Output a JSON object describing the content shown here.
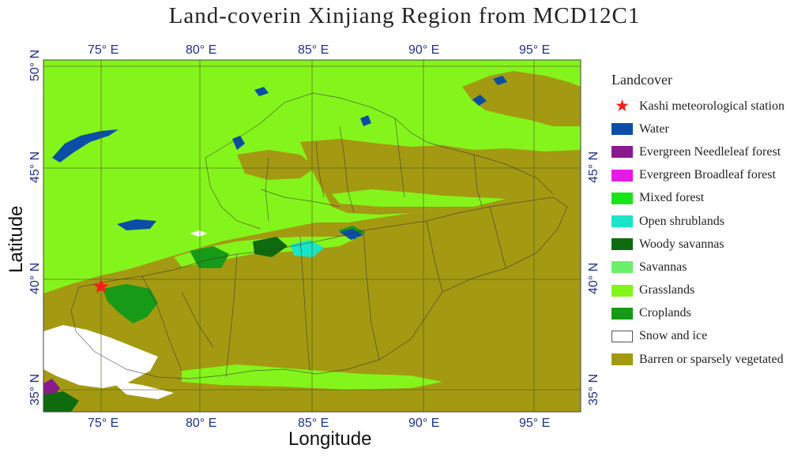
{
  "title": "Land-coverin Xinjiang Region from MCD12C1",
  "axes": {
    "x_label": "Longitude",
    "y_label": "Latitude",
    "longitude_ticks": [
      "75° E",
      "80° E",
      "85° E",
      "90° E",
      "95° E"
    ],
    "latitude_ticks": [
      "50° N",
      "45° N",
      "40° N",
      "35° N"
    ]
  },
  "legend": {
    "title": "Landcover",
    "items": [
      {
        "label": "Kashi meteorological station",
        "color": "#ff1a1a",
        "icon": "star-icon"
      },
      {
        "label": "Water",
        "color": "#0a4ea8"
      },
      {
        "label": "Evergreen Needleleaf forest",
        "color": "#8a1a8f"
      },
      {
        "label": "Evergreen Broadleaf forest",
        "color": "#e619e6"
      },
      {
        "label": "Mixed forest",
        "color": "#19e619"
      },
      {
        "label": "Open shrublands",
        "color": "#19e6c8"
      },
      {
        "label": "Woody savannas",
        "color": "#0e6b0e"
      },
      {
        "label": "Savannas",
        "color": "#6cf06c"
      },
      {
        "label": "Grasslands",
        "color": "#84f51a"
      },
      {
        "label": "Croplands",
        "color": "#179a17"
      },
      {
        "label": "Snow and ice",
        "color": "#ffffff"
      },
      {
        "label": "Barren or sparsely vegetated",
        "color": "#a39a12"
      }
    ]
  },
  "colors": {
    "grassland": "#84f51a",
    "barren": "#a39a12",
    "water": "#0a4ea8",
    "snow": "#ffffff",
    "station": "#ff1a1a",
    "tick_text": "#1f2f8f"
  }
}
